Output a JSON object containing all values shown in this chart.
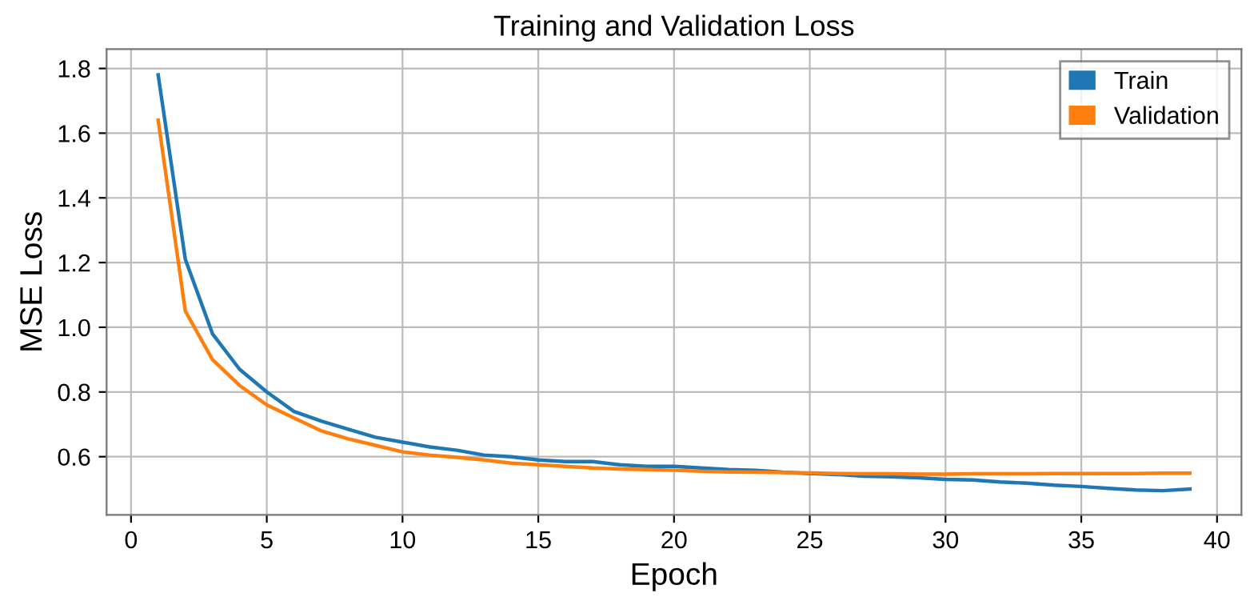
{
  "chart_data": {
    "type": "line",
    "title": "Training and Validation Loss",
    "xlabel": "Epoch",
    "ylabel": "MSE Loss",
    "x": [
      1,
      2,
      3,
      4,
      5,
      6,
      7,
      8,
      9,
      10,
      11,
      12,
      13,
      14,
      15,
      16,
      17,
      18,
      19,
      20,
      21,
      22,
      23,
      24,
      25,
      26,
      27,
      28,
      29,
      30,
      31,
      32,
      33,
      34,
      35,
      36,
      37,
      38,
      39
    ],
    "series": [
      {
        "name": "Train",
        "color": "#1f77b4",
        "values": [
          1.78,
          1.21,
          0.98,
          0.87,
          0.8,
          0.74,
          0.71,
          0.685,
          0.66,
          0.645,
          0.63,
          0.62,
          0.605,
          0.6,
          0.59,
          0.585,
          0.585,
          0.575,
          0.57,
          0.57,
          0.565,
          0.56,
          0.558,
          0.552,
          0.548,
          0.545,
          0.54,
          0.538,
          0.535,
          0.53,
          0.528,
          0.522,
          0.518,
          0.512,
          0.508,
          0.502,
          0.497,
          0.495,
          0.5
        ]
      },
      {
        "name": "Validation",
        "color": "#ff7f0e",
        "values": [
          1.64,
          1.05,
          0.9,
          0.82,
          0.76,
          0.72,
          0.68,
          0.655,
          0.635,
          0.615,
          0.605,
          0.598,
          0.59,
          0.58,
          0.575,
          0.57,
          0.565,
          0.562,
          0.56,
          0.558,
          0.555,
          0.553,
          0.552,
          0.551,
          0.55,
          0.548,
          0.547,
          0.547,
          0.546,
          0.546,
          0.547,
          0.547,
          0.547,
          0.548,
          0.548,
          0.548,
          0.548,
          0.549,
          0.549
        ]
      }
    ],
    "xlim": [
      -0.9,
      40.9
    ],
    "xticks": [
      0,
      5,
      10,
      15,
      20,
      25,
      30,
      35,
      40
    ],
    "ylim": [
      0.42,
      1.86
    ],
    "yticks": [
      0.6,
      0.8,
      {
        "value": 1.0,
        "label": "1.0"
      },
      1.2,
      1.4,
      1.6,
      1.8
    ],
    "grid": true,
    "legend": "top right",
    "marker": "none",
    "line_style": "solid"
  }
}
